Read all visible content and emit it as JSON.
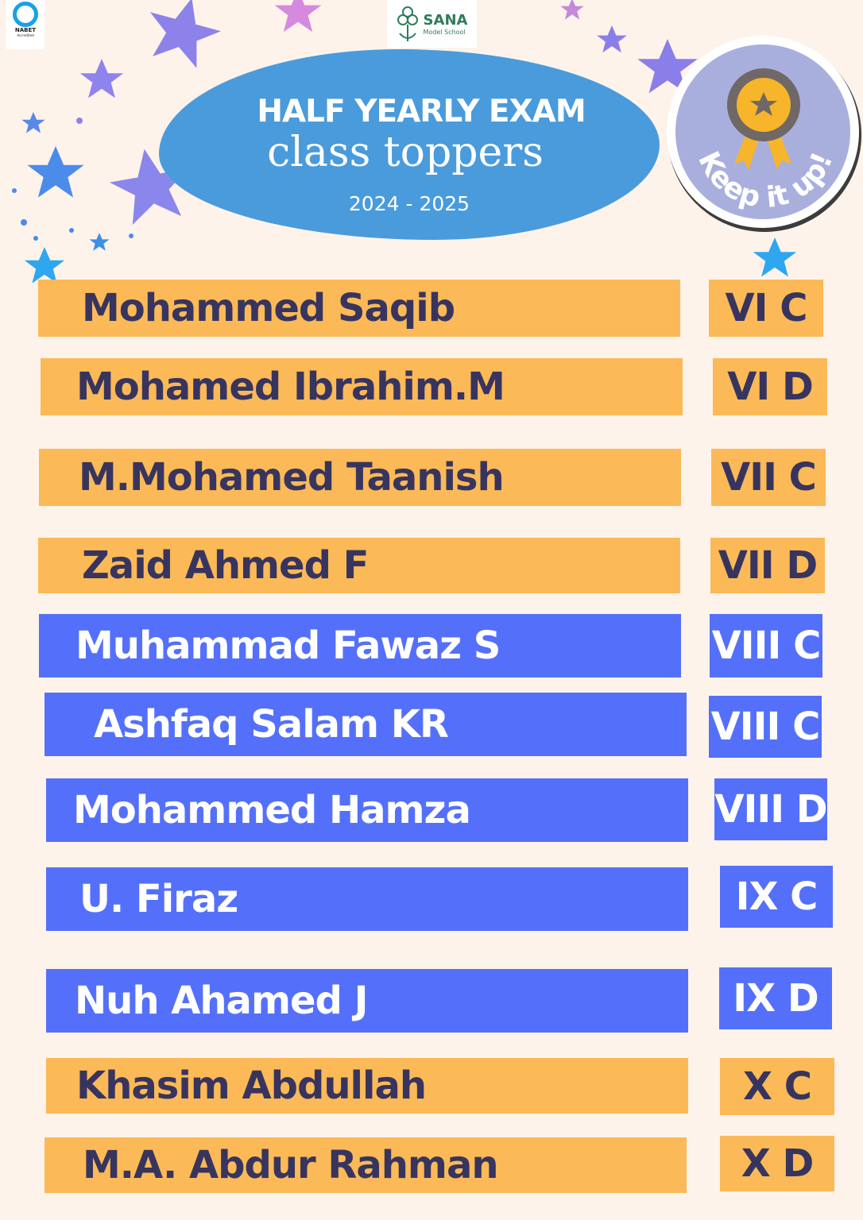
{
  "logos": {
    "nabet": "NABET",
    "nabet_sub": "Accredited",
    "school_name": "SANA",
    "school_sub": "Model School"
  },
  "header": {
    "title": "HALF YEARLY EXAM",
    "subtitle": "class toppers",
    "year": "2024 - 2025"
  },
  "badge": {
    "text": "Keep it up!",
    "icon": "medal-icon"
  },
  "colors": {
    "background": "#fdf3ea",
    "orange": "#fbb957",
    "blue": "#5470fb",
    "cloud": "#4a9bdb",
    "text_dark": "#37355f",
    "badge": "#a9afdd"
  },
  "toppers": [
    {
      "name": "Mohammed Saqib",
      "class": "VI C",
      "color": "orange"
    },
    {
      "name": "Mohamed Ibrahim.M",
      "class": "VI D",
      "color": "orange"
    },
    {
      "name": "M.Mohamed Taanish",
      "class": "VII C",
      "color": "orange"
    },
    {
      "name": "Zaid Ahmed F",
      "class": "VII D",
      "color": "orange"
    },
    {
      "name": "Muhammad Fawaz S",
      "class": "VIII C",
      "color": "blue"
    },
    {
      "name": "Ashfaq Salam KR",
      "class": "VIII C",
      "color": "blue"
    },
    {
      "name": "Mohammed Hamza",
      "class": "VIII D",
      "color": "blue"
    },
    {
      "name": "U. Firaz",
      "class": "IX C",
      "color": "blue"
    },
    {
      "name": "Nuh Ahamed J",
      "class": "IX D",
      "color": "blue"
    },
    {
      "name": "Khasim Abdullah",
      "class": "X C",
      "color": "orange"
    },
    {
      "name": "M.A. Abdur Rahman",
      "class": "X D",
      "color": "orange"
    }
  ]
}
